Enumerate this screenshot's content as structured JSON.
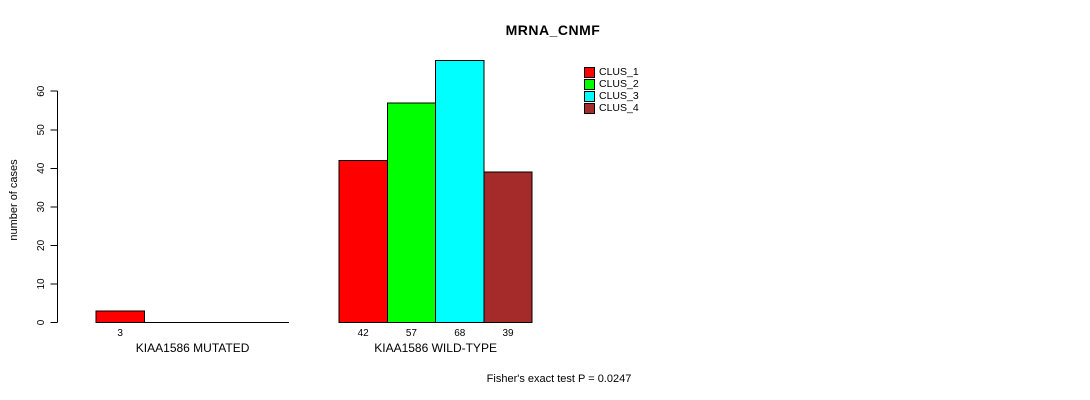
{
  "chart_data": {
    "type": "bar",
    "title": "MRNA_CNMF",
    "xlabel": "",
    "ylabel": "number of cases",
    "ylim": [
      0,
      68
    ],
    "yticks": [
      0,
      10,
      20,
      30,
      40,
      50,
      60
    ],
    "grid": false,
    "legend_position": "top-right",
    "categories": [
      "KIAA1586 MUTATED",
      "KIAA1586 WILD-TYPE"
    ],
    "series": [
      {
        "name": "CLUS_1",
        "color": "#ff0000",
        "values": [
          3,
          42
        ]
      },
      {
        "name": "CLUS_2",
        "color": "#00ff00",
        "values": [
          0,
          57
        ]
      },
      {
        "name": "CLUS_3",
        "color": "#00ffff",
        "values": [
          0,
          68
        ]
      },
      {
        "name": "CLUS_4",
        "color": "#a52a2a",
        "values": [
          0,
          39
        ]
      }
    ],
    "value_labels": {
      "show": true,
      "hide_zero": true
    },
    "bar_border_color": "#000000",
    "annotation": "Fisher's exact test P = 0.0247"
  }
}
